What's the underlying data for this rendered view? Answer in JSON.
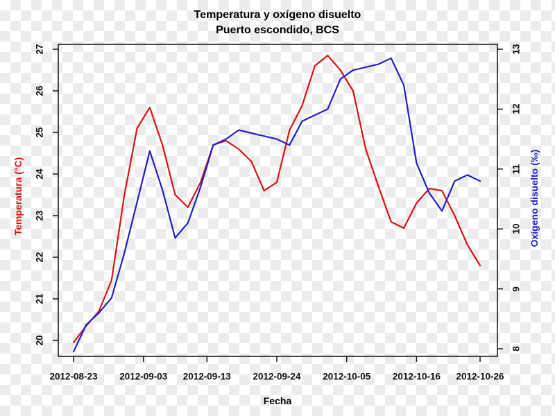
{
  "figure": {
    "title_line1": "Temperatura y oxígeno disuelto",
    "title_line2": "Puerto escondido, BCS",
    "x_axis": {
      "label": "Fecha",
      "tick_labels": [
        "2012-08-23",
        "2012-09-03",
        "2012-09-13",
        "2012-09-24",
        "2012-10-05",
        "2012-10-16",
        "2012-10-26"
      ]
    },
    "y_left": {
      "label": "Temperatura (°C)",
      "color": "#dd1111",
      "ticks": [
        20,
        21,
        22,
        23,
        24,
        25,
        26,
        27
      ]
    },
    "y_right": {
      "label": "Oxígeno disuelto (‰)",
      "color": "#2020cc",
      "ticks": [
        8,
        9,
        10,
        11,
        12,
        13
      ]
    }
  },
  "chart_data": {
    "type": "line",
    "title": "Temperatura y oxígeno disuelto",
    "subtitle": "Puerto escondido, BCS",
    "xlabel": "Fecha",
    "grid": false,
    "legend": "none",
    "x_tick_labels": [
      "2012-08-23",
      "2012-09-03",
      "2012-09-13",
      "2012-09-24",
      "2012-10-05",
      "2012-10-16",
      "2012-10-26"
    ],
    "y_left_ticks": [
      20,
      21,
      22,
      23,
      24,
      25,
      26,
      27
    ],
    "y_right_ticks": [
      8,
      9,
      10,
      11,
      12,
      13
    ],
    "y_left_label": "Temperatura (°C)",
    "y_right_label": "Oxígeno disuelto (‰)",
    "y_left_range": [
      19.8,
      27.1
    ],
    "y_right_range": [
      7.9,
      13.1
    ],
    "x": [
      "2012-08-23",
      "2012-08-25",
      "2012-08-27",
      "2012-08-29",
      "2012-08-31",
      "2012-09-02",
      "2012-09-04",
      "2012-09-06",
      "2012-09-08",
      "2012-09-10",
      "2012-09-12",
      "2012-09-14",
      "2012-09-16",
      "2012-09-18",
      "2012-09-20",
      "2012-09-22",
      "2012-09-24",
      "2012-09-26",
      "2012-09-28",
      "2012-09-30",
      "2012-10-02",
      "2012-10-04",
      "2012-10-06",
      "2012-10-08",
      "2012-10-10",
      "2012-10-12",
      "2012-10-14",
      "2012-10-16",
      "2012-10-18",
      "2012-10-20",
      "2012-10-22",
      "2012-10-24",
      "2012-10-26"
    ],
    "series": [
      {
        "name": "Temperatura (°C)",
        "axis": "left",
        "color": "#dd1111",
        "values": [
          19.95,
          20.35,
          20.7,
          21.45,
          23.5,
          25.1,
          25.6,
          24.7,
          23.5,
          23.2,
          23.8,
          24.7,
          24.8,
          24.6,
          24.3,
          23.6,
          23.8,
          25.05,
          25.65,
          26.6,
          26.85,
          26.5,
          26.0,
          24.6,
          23.7,
          22.85,
          22.7,
          23.3,
          23.65,
          23.6,
          23.0,
          22.3,
          21.8
        ]
      },
      {
        "name": "Oxígeno disuelto (‰)",
        "axis": "right",
        "color": "#2020cc",
        "values": [
          7.95,
          8.4,
          8.6,
          8.85,
          9.6,
          10.45,
          11.3,
          10.65,
          9.85,
          10.1,
          10.7,
          11.4,
          11.5,
          11.65,
          11.6,
          11.55,
          11.5,
          11.4,
          11.8,
          11.9,
          12.0,
          12.5,
          12.65,
          12.7,
          12.75,
          12.85,
          12.4,
          11.1,
          10.6,
          10.3,
          10.8,
          10.9,
          10.8
        ]
      }
    ]
  }
}
